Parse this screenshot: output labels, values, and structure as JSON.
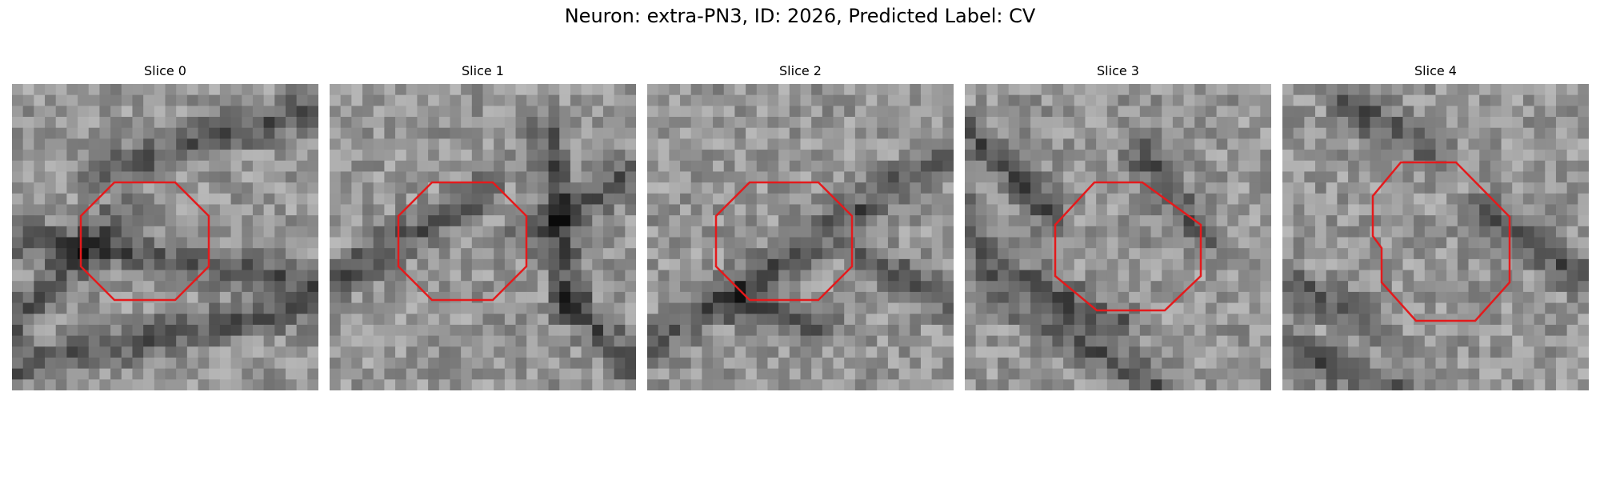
{
  "figure": {
    "title": "Neuron: extra-PN3, ID: 2026, Predicted Label: CV"
  },
  "panels": [
    {
      "label": "Slice 0",
      "outline_color": "#e41a1c"
    },
    {
      "label": "Slice 1",
      "outline_color": "#e41a1c"
    },
    {
      "label": "Slice 2",
      "outline_color": "#e41a1c"
    },
    {
      "label": "Slice 3",
      "outline_color": "#e41a1c"
    },
    {
      "label": "Slice 4",
      "outline_color": "#e41a1c"
    }
  ]
}
